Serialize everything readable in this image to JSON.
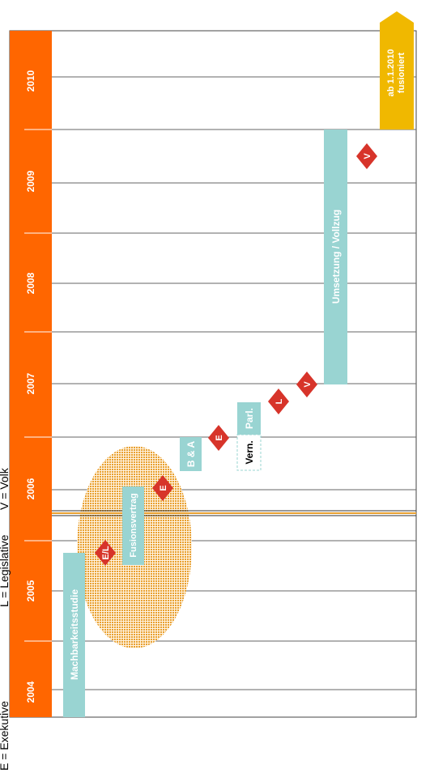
{
  "colors": {
    "orange": "#ff6600",
    "teal": "#99d4d2",
    "red": "#d7342a",
    "gold": "#f0b800",
    "hatch": "#e8a030"
  },
  "years": [
    "2004",
    "2005",
    "2006",
    "2007",
    "2008",
    "2009",
    "2010"
  ],
  "phases": {
    "machbarkeitsstudie": "Machbarkeitsstudie",
    "fusionsvertrag": "Fusionsvertrag",
    "b_und_a": "B & A",
    "parl": "Parl.",
    "vern": "Vern.",
    "umsetzung": "Umsetzung / Vollzug"
  },
  "markers": {
    "el": "E/L",
    "e1": "E",
    "e2": "E",
    "l": "L",
    "v1": "V",
    "v2": "V"
  },
  "fusion": {
    "line1": "ab 1.1.2010",
    "line2": "fusioniert"
  },
  "legend": {
    "e": "E = Exekutive",
    "l": "L = Legislative",
    "v": "V = Volk"
  }
}
